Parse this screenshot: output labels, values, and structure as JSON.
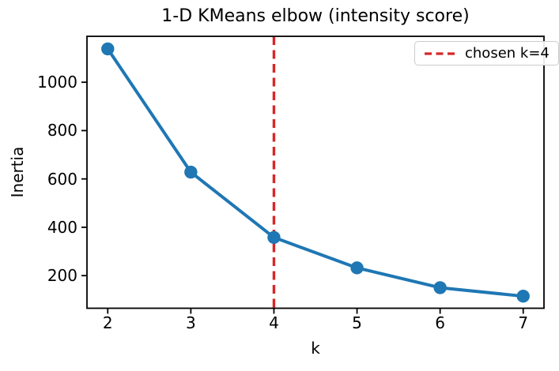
{
  "figure": {
    "background": "#ffffff",
    "colors": {
      "series_line": "#1f77b4",
      "chosen_vline": "#d62728",
      "spine": "#000000",
      "text": "#000000",
      "legend_border": "#cccccc"
    }
  },
  "chart_data": {
    "type": "line",
    "title": "1-D KMeans elbow (intensity score)",
    "xlabel": "k",
    "ylabel": "Inertia",
    "x": [
      2,
      3,
      4,
      5,
      6,
      7
    ],
    "series": [
      {
        "name": "inertia",
        "values": [
          1138,
          628,
          358,
          232,
          150,
          115
        ],
        "color": "#1f77b4",
        "marker": "o"
      }
    ],
    "x_ticks": [
      "2",
      "3",
      "4",
      "5",
      "6",
      "7"
    ],
    "x_tick_values": [
      2,
      3,
      4,
      5,
      6,
      7
    ],
    "y_ticks": [
      "200",
      "400",
      "600",
      "800",
      "1000"
    ],
    "y_tick_values": [
      200,
      400,
      600,
      800,
      1000
    ],
    "xlim": [
      1.75,
      7.25
    ],
    "ylim": [
      65,
      1190
    ],
    "grid": false,
    "vline": {
      "x": 4,
      "style": "dashed",
      "color": "#d62728"
    },
    "legend": {
      "position": "upper right",
      "entries": [
        {
          "label": "chosen k=4",
          "color": "#d62728",
          "style": "dashed"
        }
      ]
    }
  }
}
